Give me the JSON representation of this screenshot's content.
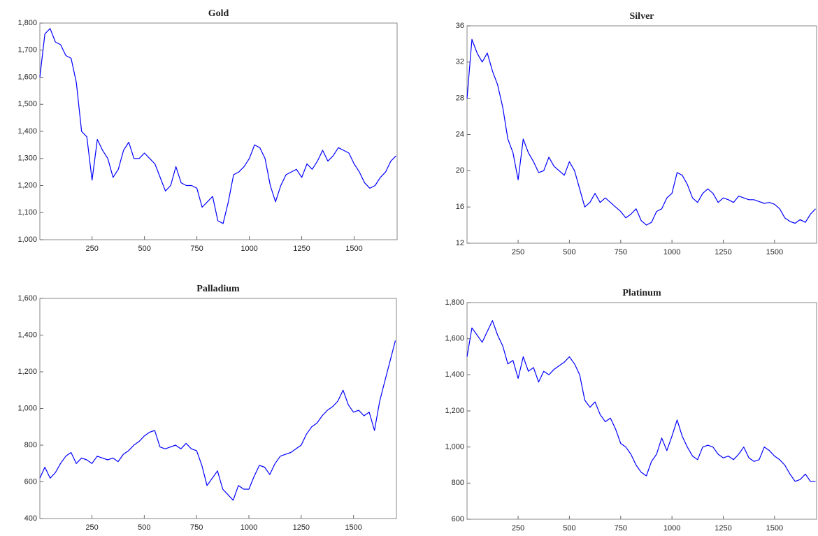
{
  "chart_data": [
    {
      "type": "line",
      "title": "Gold",
      "color": "#0000ff",
      "xlim": [
        1,
        1705
      ],
      "xticks": [
        250,
        500,
        750,
        1000,
        1250,
        1500
      ],
      "ylim": [
        1000,
        1800
      ],
      "yticks": [
        {
          "value": 1000,
          "label": "1,000"
        },
        {
          "value": 1100,
          "label": "1,100"
        },
        {
          "value": 1200,
          "label": "1,200"
        },
        {
          "value": 1300,
          "label": "1,300"
        },
        {
          "value": 1400,
          "label": "1,400"
        },
        {
          "value": 1500,
          "label": "1,500"
        },
        {
          "value": 1600,
          "label": "1,600"
        },
        {
          "value": 1700,
          "label": "1,700"
        },
        {
          "value": 1800,
          "label": "1,800"
        }
      ],
      "x": [
        1,
        25,
        50,
        75,
        100,
        125,
        150,
        175,
        200,
        225,
        250,
        275,
        300,
        325,
        350,
        375,
        400,
        425,
        450,
        475,
        500,
        525,
        550,
        575,
        600,
        625,
        650,
        675,
        700,
        725,
        750,
        775,
        800,
        825,
        850,
        875,
        900,
        925,
        950,
        975,
        1000,
        1025,
        1050,
        1075,
        1100,
        1125,
        1150,
        1175,
        1200,
        1225,
        1250,
        1275,
        1300,
        1325,
        1350,
        1375,
        1400,
        1425,
        1450,
        1475,
        1500,
        1525,
        1550,
        1575,
        1600,
        1625,
        1650,
        1675,
        1700
      ],
      "values": [
        1600,
        1760,
        1780,
        1730,
        1720,
        1680,
        1670,
        1580,
        1400,
        1380,
        1220,
        1370,
        1330,
        1300,
        1230,
        1260,
        1330,
        1360,
        1300,
        1300,
        1320,
        1300,
        1280,
        1230,
        1180,
        1200,
        1270,
        1210,
        1200,
        1200,
        1190,
        1120,
        1140,
        1160,
        1070,
        1060,
        1140,
        1240,
        1250,
        1270,
        1300,
        1350,
        1340,
        1300,
        1200,
        1140,
        1200,
        1240,
        1250,
        1260,
        1230,
        1280,
        1260,
        1290,
        1330,
        1290,
        1310,
        1340,
        1330,
        1320,
        1280,
        1250,
        1210,
        1190,
        1200,
        1230,
        1250,
        1290,
        1310
      ]
    },
    {
      "type": "line",
      "title": "Silver",
      "color": "#0000ff",
      "xlim": [
        1,
        1705
      ],
      "xticks": [
        250,
        500,
        750,
        1000,
        1250,
        1500
      ],
      "ylim": [
        12,
        36
      ],
      "yticks": [
        12,
        16,
        20,
        24,
        28,
        32,
        36
      ],
      "x": [
        1,
        25,
        50,
        75,
        100,
        125,
        150,
        175,
        200,
        225,
        250,
        275,
        300,
        325,
        350,
        375,
        400,
        425,
        450,
        475,
        500,
        525,
        550,
        575,
        600,
        625,
        650,
        675,
        700,
        725,
        750,
        775,
        800,
        825,
        850,
        875,
        900,
        925,
        950,
        975,
        1000,
        1025,
        1050,
        1075,
        1100,
        1125,
        1150,
        1175,
        1200,
        1225,
        1250,
        1275,
        1300,
        1325,
        1350,
        1375,
        1400,
        1425,
        1450,
        1475,
        1500,
        1525,
        1550,
        1575,
        1600,
        1625,
        1650,
        1675,
        1700
      ],
      "values": [
        28,
        34.5,
        33,
        32,
        33,
        31,
        29.5,
        27,
        23.5,
        22,
        19,
        23.5,
        22,
        21,
        19.8,
        20,
        21.5,
        20.5,
        20,
        19.5,
        21,
        20,
        18,
        16,
        16.5,
        17.5,
        16.5,
        17,
        16.5,
        16,
        15.5,
        14.8,
        15.2,
        15.8,
        14.5,
        14,
        14.3,
        15.5,
        15.8,
        17,
        17.5,
        19.8,
        19.5,
        18.5,
        17,
        16.5,
        17.5,
        18,
        17.5,
        16.5,
        17,
        16.8,
        16.5,
        17.2,
        17,
        16.8,
        16.8,
        16.6,
        16.4,
        16.5,
        16.3,
        15.8,
        14.8,
        14.4,
        14.2,
        14.6,
        14.3,
        15.2,
        15.8
      ]
    },
    {
      "type": "line",
      "title": "Palladium",
      "color": "#0000ff",
      "xlim": [
        1,
        1705
      ],
      "xticks": [
        250,
        500,
        750,
        1000,
        1250,
        1500
      ],
      "ylim": [
        400,
        1600
      ],
      "yticks": [
        400,
        600,
        800,
        {
          "value": 1000,
          "label": "1,000"
        },
        {
          "value": 1200,
          "label": "1,200"
        },
        {
          "value": 1400,
          "label": "1,400"
        },
        {
          "value": 1600,
          "label": "1,600"
        }
      ],
      "x": [
        1,
        25,
        50,
        75,
        100,
        125,
        150,
        175,
        200,
        225,
        250,
        275,
        300,
        325,
        350,
        375,
        400,
        425,
        450,
        475,
        500,
        525,
        550,
        575,
        600,
        625,
        650,
        675,
        700,
        725,
        750,
        775,
        800,
        825,
        850,
        875,
        900,
        925,
        950,
        975,
        1000,
        1025,
        1050,
        1075,
        1100,
        1125,
        1150,
        1175,
        1200,
        1225,
        1250,
        1275,
        1300,
        1325,
        1350,
        1375,
        1400,
        1425,
        1450,
        1475,
        1500,
        1525,
        1550,
        1575,
        1600,
        1625,
        1650,
        1675,
        1700
      ],
      "values": [
        620,
        680,
        620,
        650,
        700,
        740,
        760,
        700,
        730,
        720,
        700,
        740,
        730,
        720,
        730,
        710,
        750,
        770,
        800,
        820,
        850,
        870,
        880,
        790,
        780,
        790,
        800,
        780,
        810,
        780,
        770,
        690,
        580,
        620,
        660,
        560,
        530,
        500,
        580,
        560,
        560,
        630,
        690,
        680,
        640,
        700,
        740,
        750,
        760,
        780,
        800,
        860,
        900,
        920,
        960,
        990,
        1010,
        1040,
        1100,
        1020,
        980,
        990,
        960,
        980,
        880,
        1040,
        1150,
        1260,
        1370
      ]
    },
    {
      "type": "line",
      "title": "Platinum",
      "color": "#0000ff",
      "xlim": [
        1,
        1705
      ],
      "xticks": [
        250,
        500,
        750,
        1000,
        1250,
        1500
      ],
      "ylim": [
        600,
        1800
      ],
      "yticks": [
        600,
        800,
        {
          "value": 1000,
          "label": "1,000"
        },
        {
          "value": 1200,
          "label": "1,200"
        },
        {
          "value": 1400,
          "label": "1,400"
        },
        {
          "value": 1600,
          "label": "1,600"
        },
        {
          "value": 1800,
          "label": "1,800"
        }
      ],
      "x": [
        1,
        25,
        50,
        75,
        100,
        125,
        150,
        175,
        200,
        225,
        250,
        275,
        300,
        325,
        350,
        375,
        400,
        425,
        450,
        475,
        500,
        525,
        550,
        575,
        600,
        625,
        650,
        675,
        700,
        725,
        750,
        775,
        800,
        825,
        850,
        875,
        900,
        925,
        950,
        975,
        1000,
        1025,
        1050,
        1075,
        1100,
        1125,
        1150,
        1175,
        1200,
        1225,
        1250,
        1275,
        1300,
        1325,
        1350,
        1375,
        1400,
        1425,
        1450,
        1475,
        1500,
        1525,
        1550,
        1575,
        1600,
        1625,
        1650,
        1675,
        1700
      ],
      "values": [
        1500,
        1660,
        1620,
        1580,
        1640,
        1700,
        1620,
        1560,
        1460,
        1480,
        1380,
        1500,
        1420,
        1440,
        1360,
        1420,
        1400,
        1430,
        1450,
        1470,
        1500,
        1460,
        1400,
        1260,
        1220,
        1250,
        1180,
        1140,
        1160,
        1100,
        1020,
        1000,
        960,
        900,
        860,
        840,
        920,
        960,
        1050,
        980,
        1060,
        1150,
        1060,
        1000,
        950,
        930,
        1000,
        1010,
        1000,
        960,
        940,
        950,
        930,
        960,
        1000,
        940,
        920,
        930,
        1000,
        980,
        950,
        930,
        900,
        850,
        810,
        820,
        850,
        810,
        810
      ]
    }
  ]
}
